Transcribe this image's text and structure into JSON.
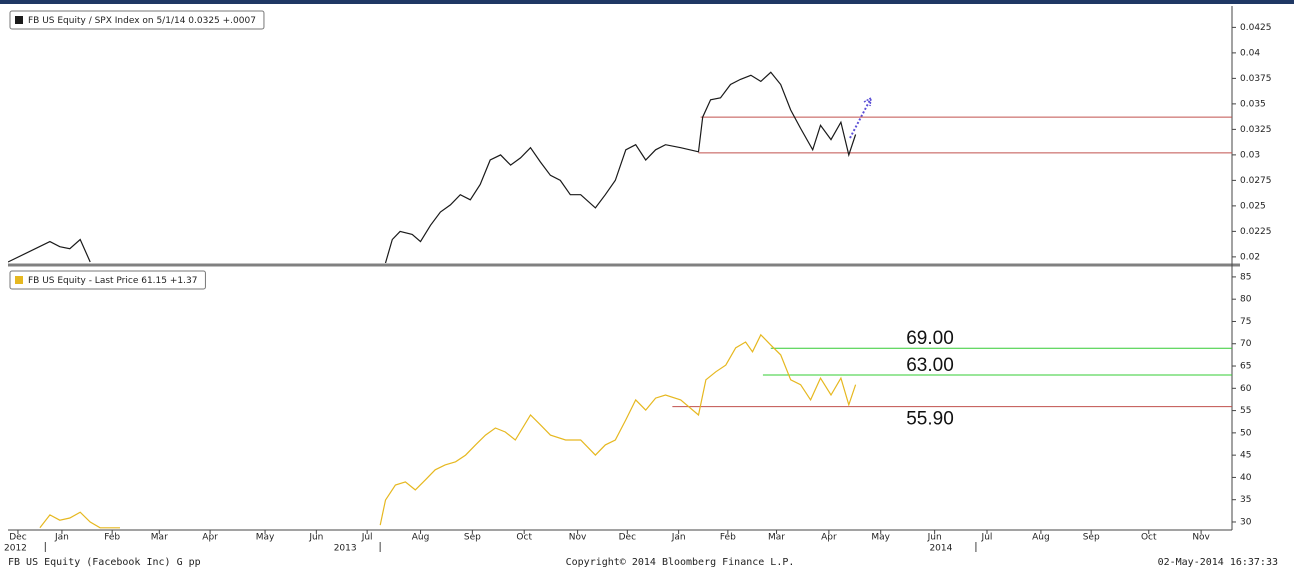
{
  "chart_data": [
    {
      "type": "line",
      "series": [
        {
          "name": "FB US Equity / SPX Index on 5/1/14 0.0325  +.0007",
          "color": "#1a1a1a",
          "x": [
            -0.19,
            0.61,
            0.8,
            0.99,
            1.19,
            1.38,
            null,
            7.02,
            7.15,
            7.3,
            7.53,
            7.69,
            7.88,
            8.07,
            8.26,
            8.45,
            8.64,
            8.83,
            9.02,
            9.22,
            9.41,
            9.6,
            9.79,
            9.98,
            10.17,
            10.36,
            10.55,
            10.75,
            11.03,
            11.22,
            11.41,
            11.61,
            11.8,
            11.99,
            12.18,
            12.37,
            12.66,
            13.0,
            13.08,
            13.23,
            13.42,
            13.61,
            13.8,
            14.0,
            14.19,
            14.38,
            14.57,
            14.76,
            14.95,
            15.18,
            15.33,
            15.53,
            15.72,
            15.87,
            16.0
          ],
          "values": [
            0.0195,
            0.0215,
            0.021,
            0.0208,
            0.0217,
            0.0195,
            null,
            0.0194,
            0.0217,
            0.0225,
            0.0222,
            0.0215,
            0.0231,
            0.0244,
            0.0251,
            0.0261,
            0.0256,
            0.0271,
            0.0295,
            0.03,
            0.029,
            0.0297,
            0.0307,
            0.0293,
            0.028,
            0.0275,
            0.0261,
            0.0261,
            0.0248,
            0.0261,
            0.0275,
            0.0305,
            0.031,
            0.0295,
            0.0305,
            0.031,
            0.0307,
            0.0303,
            0.0337,
            0.0354,
            0.0356,
            0.0369,
            0.0374,
            0.0378,
            0.0372,
            0.0381,
            0.0369,
            0.0344,
            0.0326,
            0.0305,
            0.0329,
            0.0315,
            0.0332,
            0.03,
            0.032
          ]
        }
      ],
      "hlines": [
        {
          "value": 0.0337,
          "color": "#c0504d",
          "x_start": 13.04
        },
        {
          "value": 0.0302,
          "color": "#c0504d",
          "x_start": 13.0
        }
      ],
      "ylim": [
        0.0194,
        0.0444
      ],
      "yticks": [
        0.02,
        0.0225,
        0.025,
        0.0275,
        0.03,
        0.0325,
        0.035,
        0.0375,
        0.04,
        0.0425
      ]
    },
    {
      "type": "line",
      "series": [
        {
          "name": "FB US Equity - Last Price  61.15  +1.37",
          "color": "#e6b820",
          "x": [
            0.42,
            0.61,
            0.8,
            0.99,
            1.19,
            1.38,
            1.57,
            1.95,
            null,
            6.92,
            7.02,
            7.21,
            7.4,
            7.59,
            7.78,
            7.97,
            8.16,
            8.36,
            8.55,
            8.74,
            8.93,
            9.12,
            9.31,
            9.5,
            9.79,
            9.98,
            10.17,
            10.46,
            10.75,
            11.03,
            11.22,
            11.41,
            11.61,
            11.8,
            11.99,
            12.18,
            12.37,
            12.66,
            13.0,
            13.14,
            13.33,
            13.52,
            13.71,
            13.9,
            14.03,
            14.19,
            14.38,
            14.57,
            14.76,
            14.95,
            15.14,
            15.33,
            15.53,
            15.72,
            15.87,
            16.0
          ],
          "values": [
            28.7,
            31.6,
            30.4,
            30.9,
            32.2,
            30,
            28.7,
            28.7,
            null,
            29.3,
            34.9,
            38.3,
            39,
            37.2,
            39.4,
            41.7,
            42.8,
            43.5,
            45,
            47.3,
            49.5,
            51.1,
            50.2,
            48.4,
            54,
            51.8,
            49.5,
            48.4,
            48.4,
            45,
            47.3,
            48.4,
            52.9,
            57.4,
            55.1,
            57.8,
            58.5,
            57.4,
            54,
            61.9,
            63.7,
            65.2,
            69.1,
            70.4,
            68.2,
            72,
            69.7,
            67.5,
            61.9,
            60.8,
            57.4,
            62.3,
            58.5,
            62.3,
            56.3,
            60.8
          ]
        }
      ],
      "hlines": [
        {
          "value": 69,
          "label": "69.00",
          "color": "#33cc33",
          "x_start": 14.38
        },
        {
          "value": 63,
          "label": "63.00",
          "color": "#33cc33",
          "x_start": 14.23
        },
        {
          "value": 55.9,
          "label": "55.90",
          "color": "#c0504d",
          "x_start": 12.5
        }
      ],
      "ylim": [
        28.2,
        87
      ],
      "yticks": [
        30,
        35,
        40,
        45,
        50,
        55,
        60,
        65,
        70,
        75,
        80,
        85
      ],
      "xlim": [
        -0.19,
        23.19
      ],
      "xticks": [
        {
          "value": 0,
          "label": "Dec"
        },
        {
          "value": 0.84,
          "label": "Jan"
        },
        {
          "value": 1.8,
          "label": "Feb"
        },
        {
          "value": 2.7,
          "label": "Mar"
        },
        {
          "value": 3.67,
          "label": "Apr"
        },
        {
          "value": 4.72,
          "label": "May"
        },
        {
          "value": 5.7,
          "label": "Jun"
        },
        {
          "value": 6.67,
          "label": "Jul"
        },
        {
          "value": 7.69,
          "label": "Aug"
        },
        {
          "value": 8.68,
          "label": "Sep"
        },
        {
          "value": 9.67,
          "label": "Oct"
        },
        {
          "value": 10.69,
          "label": "Nov"
        },
        {
          "value": 11.64,
          "label": "Dec"
        },
        {
          "value": 12.62,
          "label": "Jan"
        },
        {
          "value": 13.56,
          "label": "Feb"
        },
        {
          "value": 14.49,
          "label": "Mar"
        },
        {
          "value": 15.49,
          "label": "Apr"
        },
        {
          "value": 16.48,
          "label": "May"
        },
        {
          "value": 17.51,
          "label": "Jun"
        },
        {
          "value": 18.51,
          "label": "Jul"
        },
        {
          "value": 19.54,
          "label": "Aug"
        },
        {
          "value": 20.5,
          "label": "Sep"
        },
        {
          "value": 21.6,
          "label": "Oct"
        },
        {
          "value": 22.6,
          "label": "Nov"
        }
      ],
      "year_ticks": [
        {
          "value": -0.05,
          "label": "2012"
        },
        {
          "value": 6.25,
          "label": "2013"
        },
        {
          "value": 17.63,
          "label": "2014"
        }
      ]
    }
  ],
  "footer": {
    "left": "FB US Equity (Facebook Inc) G pp",
    "center": "Copyright© 2014 Bloomberg Finance L.P.",
    "right": "02-May-2014 16:37:33"
  }
}
